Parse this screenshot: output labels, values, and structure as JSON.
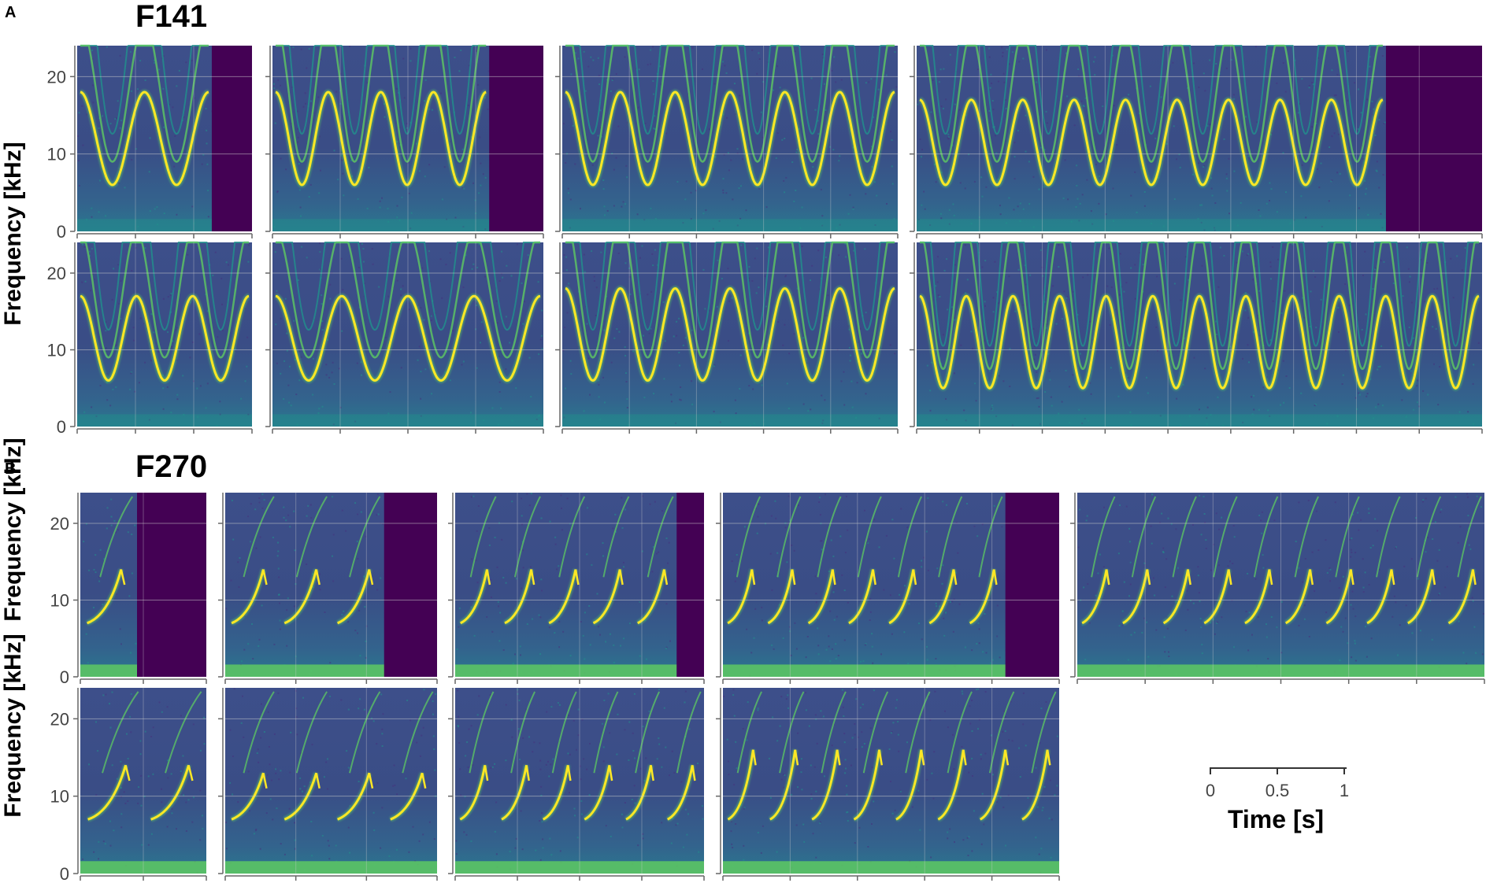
{
  "panel_labels": [
    "A",
    "B"
  ],
  "chart_data": [
    {
      "type": "heatmap",
      "kind": "spectrogram",
      "panel": "A",
      "title": "F141",
      "ylabel": "Frequency [kHz]",
      "ylim": [
        0,
        24
      ],
      "yticks": [
        0,
        10,
        20
      ],
      "colormap": "viridis",
      "grid": true,
      "rows": [
        {
          "spectrograms": [
            {
              "cycles": 2,
              "f_min_khz": 6,
              "f_max_khz": 18,
              "signal_end": 0.77
            },
            {
              "cycles": 4,
              "f_min_khz": 6,
              "f_max_khz": 18,
              "signal_end": 0.8
            },
            {
              "cycles": 6,
              "f_min_khz": 6,
              "f_max_khz": 18,
              "signal_end": 1.0
            },
            {
              "cycles": 9,
              "f_min_khz": 6,
              "f_max_khz": 17,
              "signal_end": 0.83
            }
          ]
        },
        {
          "spectrograms": [
            {
              "cycles": 3,
              "f_min_khz": 6,
              "f_max_khz": 17,
              "signal_end": 1.0
            },
            {
              "cycles": 4,
              "f_min_khz": 6,
              "f_max_khz": 17,
              "signal_end": 1.0
            },
            {
              "cycles": 6,
              "f_min_khz": 6,
              "f_max_khz": 18,
              "signal_end": 1.0
            },
            {
              "cycles": 12,
              "f_min_khz": 5,
              "f_max_khz": 17,
              "signal_end": 1.0
            }
          ]
        }
      ]
    },
    {
      "type": "heatmap",
      "kind": "spectrogram",
      "panel": "B",
      "title": "F270",
      "ylabel": "Frequency [kHz]",
      "ylim": [
        0,
        24
      ],
      "yticks": [
        0,
        10,
        20
      ],
      "colormap": "viridis",
      "grid": true,
      "rows": [
        {
          "spectrograms": [
            {
              "syllables": 1,
              "f_min_khz": 7,
              "f_max_khz": 14,
              "signal_end": 0.45
            },
            {
              "syllables": 3,
              "f_min_khz": 7,
              "f_max_khz": 14,
              "signal_end": 0.75
            },
            {
              "syllables": 5,
              "f_min_khz": 7,
              "f_max_khz": 14,
              "signal_end": 0.89
            },
            {
              "syllables": 7,
              "f_min_khz": 7,
              "f_max_khz": 14,
              "signal_end": 0.84
            },
            {
              "syllables": 10,
              "f_min_khz": 7,
              "f_max_khz": 14,
              "signal_end": 1.0
            }
          ]
        },
        {
          "spectrograms": [
            {
              "syllables": 2,
              "f_min_khz": 7,
              "f_max_khz": 14,
              "signal_end": 1.0
            },
            {
              "syllables": 4,
              "f_min_khz": 7,
              "f_max_khz": 13,
              "signal_end": 1.0
            },
            {
              "syllables": 6,
              "f_min_khz": 7,
              "f_max_khz": 14,
              "signal_end": 1.0
            },
            {
              "syllables": 8,
              "f_min_khz": 7,
              "f_max_khz": 16,
              "signal_end": 1.0
            }
          ]
        }
      ]
    }
  ],
  "time_scale_bar": {
    "title": "Time [s]",
    "tick_labels": [
      "0",
      "0.5",
      "1"
    ],
    "ticks_s": [
      0,
      0.5,
      1
    ]
  },
  "colors": {
    "background": "#ffffff",
    "silence": "#440154",
    "noise": "#3b528b",
    "mid": "#21918c",
    "bright": "#5ec962",
    "peak": "#fde725",
    "grid": "#d0d0d0",
    "axis": "#666666"
  }
}
